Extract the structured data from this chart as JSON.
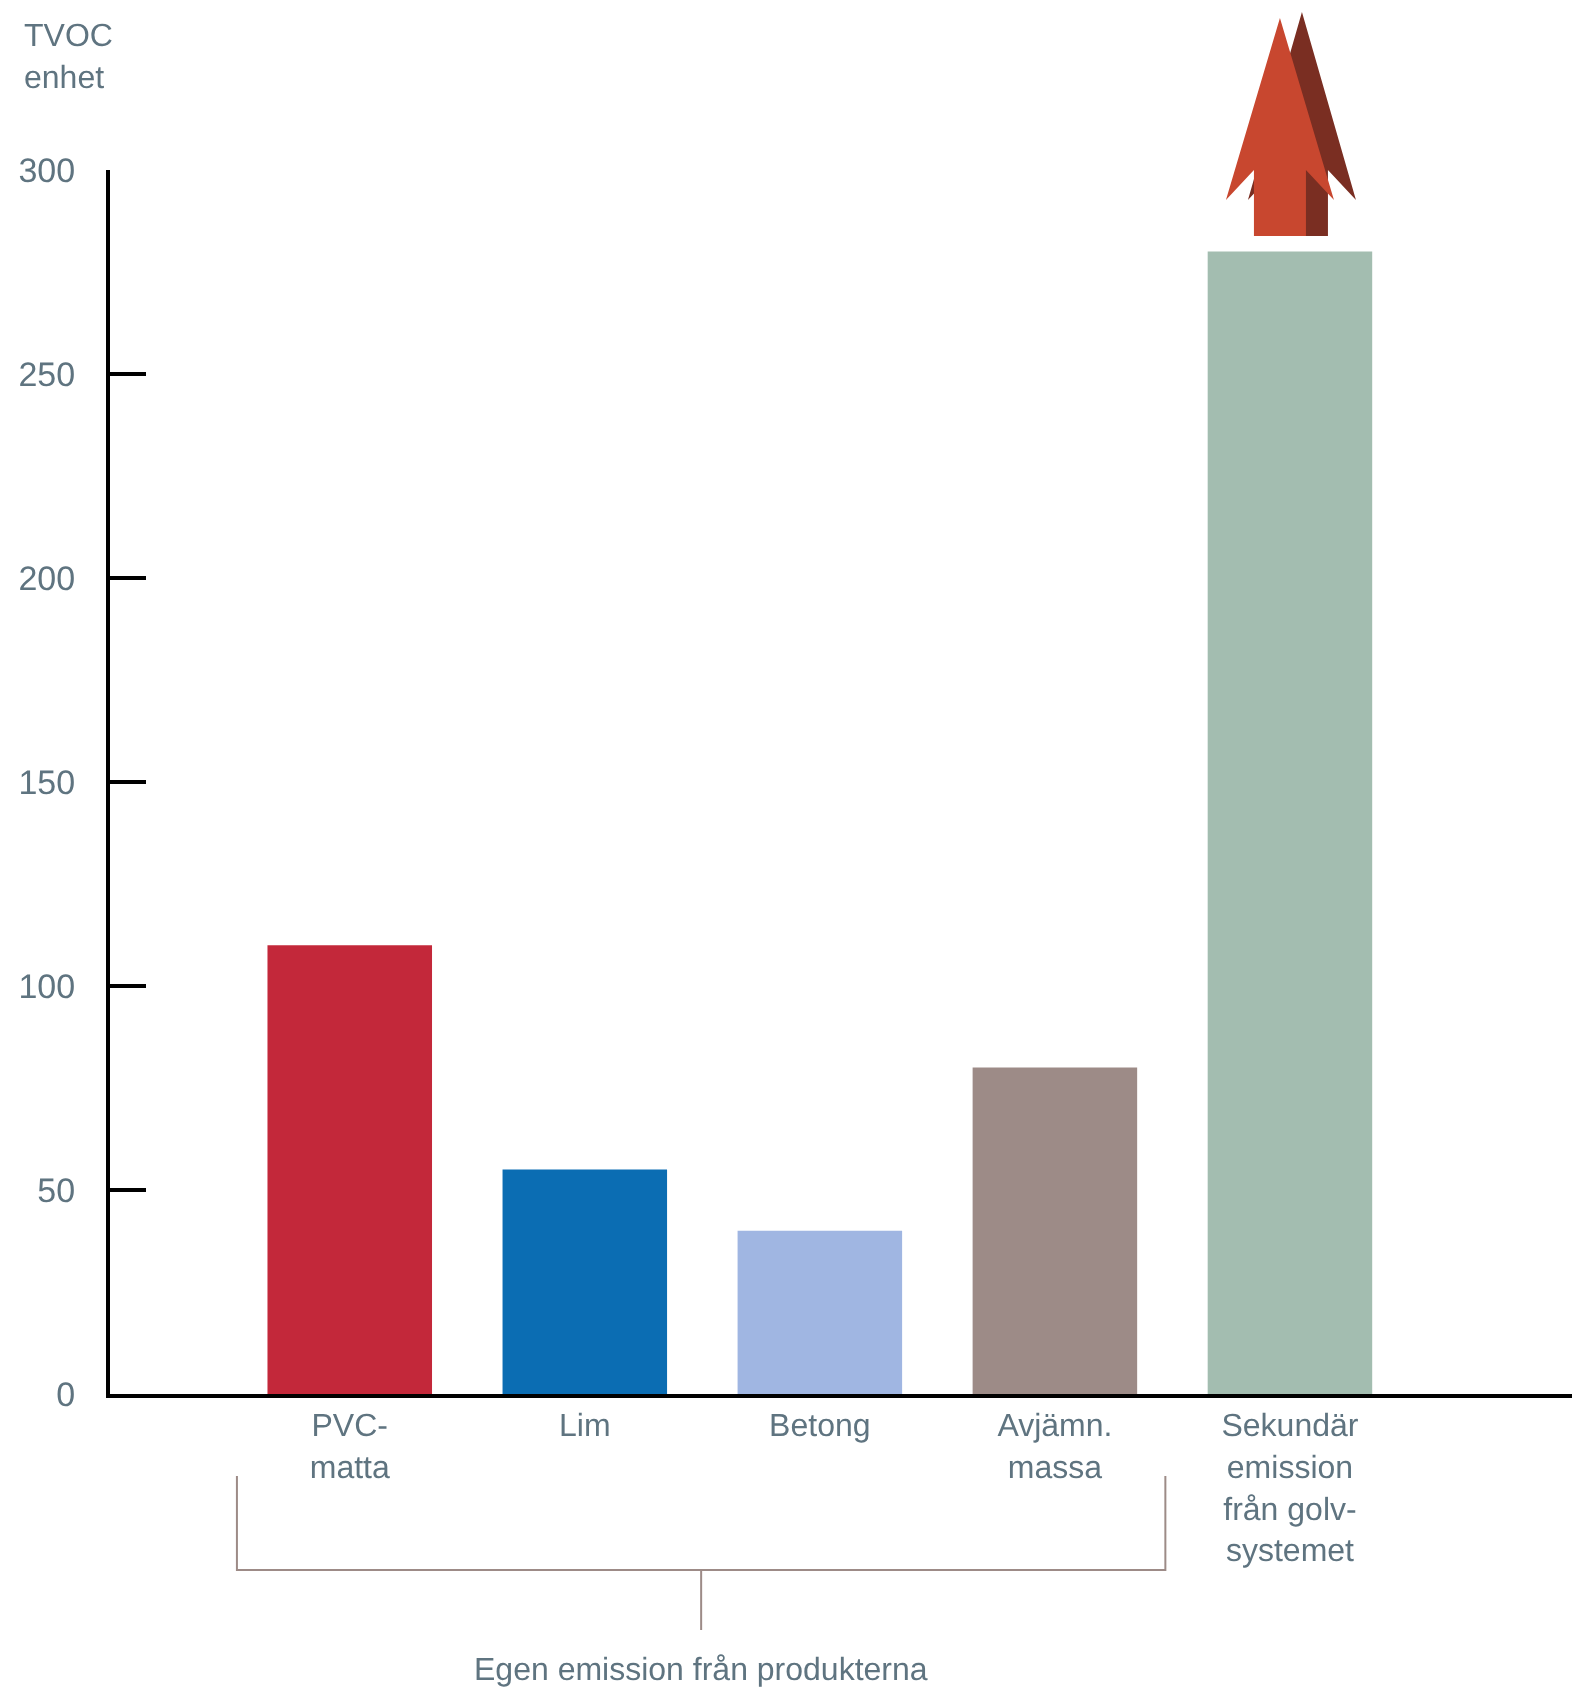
{
  "chart_data": {
    "type": "bar",
    "ylabel": "TVOC\nenhet",
    "categories": [
      "PVC-\nmatta",
      "Lim",
      "Betong",
      "Avjämn.\nmassa",
      "Sekundär\nemission\nfrån golv-\nsystemet"
    ],
    "values": [
      110,
      55,
      40,
      80,
      280
    ],
    "colors": [
      "#c3283a",
      "#0b6db3",
      "#a0b6e2",
      "#9d8b87",
      "#a3bdb0"
    ],
    "ylim": [
      0,
      300
    ],
    "yticks": [
      0,
      50,
      100,
      150,
      200,
      250,
      300
    ],
    "annotations": [
      "Egen emission från produkterna"
    ]
  }
}
